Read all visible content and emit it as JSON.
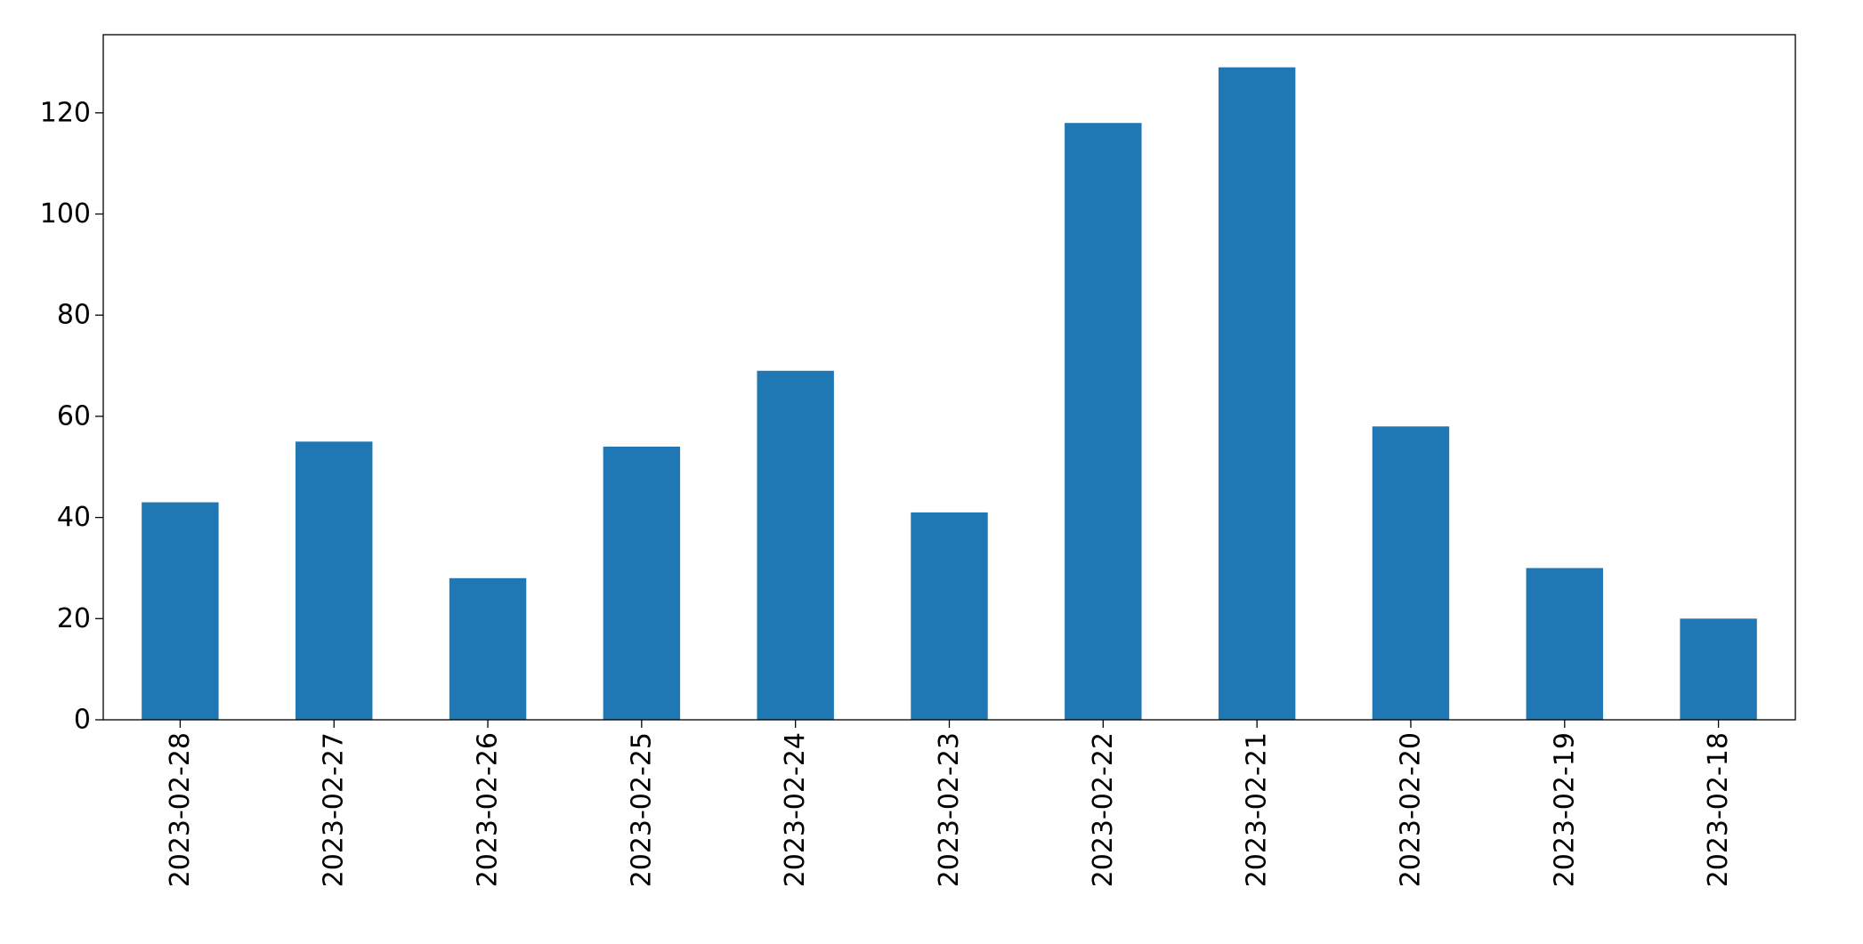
{
  "chart_data": {
    "type": "bar",
    "categories": [
      "2023-02-28",
      "2023-02-27",
      "2023-02-26",
      "2023-02-25",
      "2023-02-24",
      "2023-02-23",
      "2023-02-22",
      "2023-02-21",
      "2023-02-20",
      "2023-02-19",
      "2023-02-18"
    ],
    "values": [
      43,
      55,
      28,
      54,
      69,
      41,
      118,
      129,
      58,
      30,
      20
    ],
    "color": "#1f77b4",
    "ylim": [
      0,
      135.45
    ],
    "yticks": [
      0,
      20,
      40,
      60,
      80,
      100,
      120
    ],
    "grid": false
  }
}
